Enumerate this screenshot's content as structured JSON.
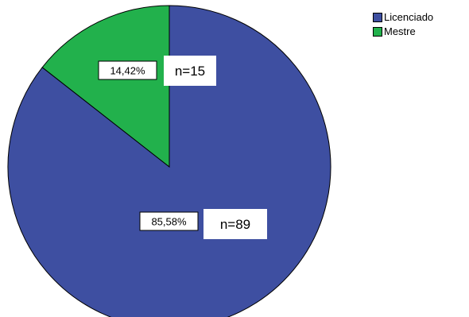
{
  "chart_data": {
    "type": "pie",
    "categories": [
      "Licenciado",
      "Mestre"
    ],
    "values": [
      89,
      15
    ],
    "percent_labels": [
      "85,58%",
      "14,42%"
    ],
    "count_labels": [
      "n=89",
      "n=15"
    ],
    "start_angle_deg": 0,
    "direction": "clockwise",
    "colors": [
      "#3e4fa1",
      "#22b14c"
    ],
    "legend": {
      "placement": "top-right",
      "entries": [
        "Licenciado",
        "Mestre"
      ]
    }
  }
}
